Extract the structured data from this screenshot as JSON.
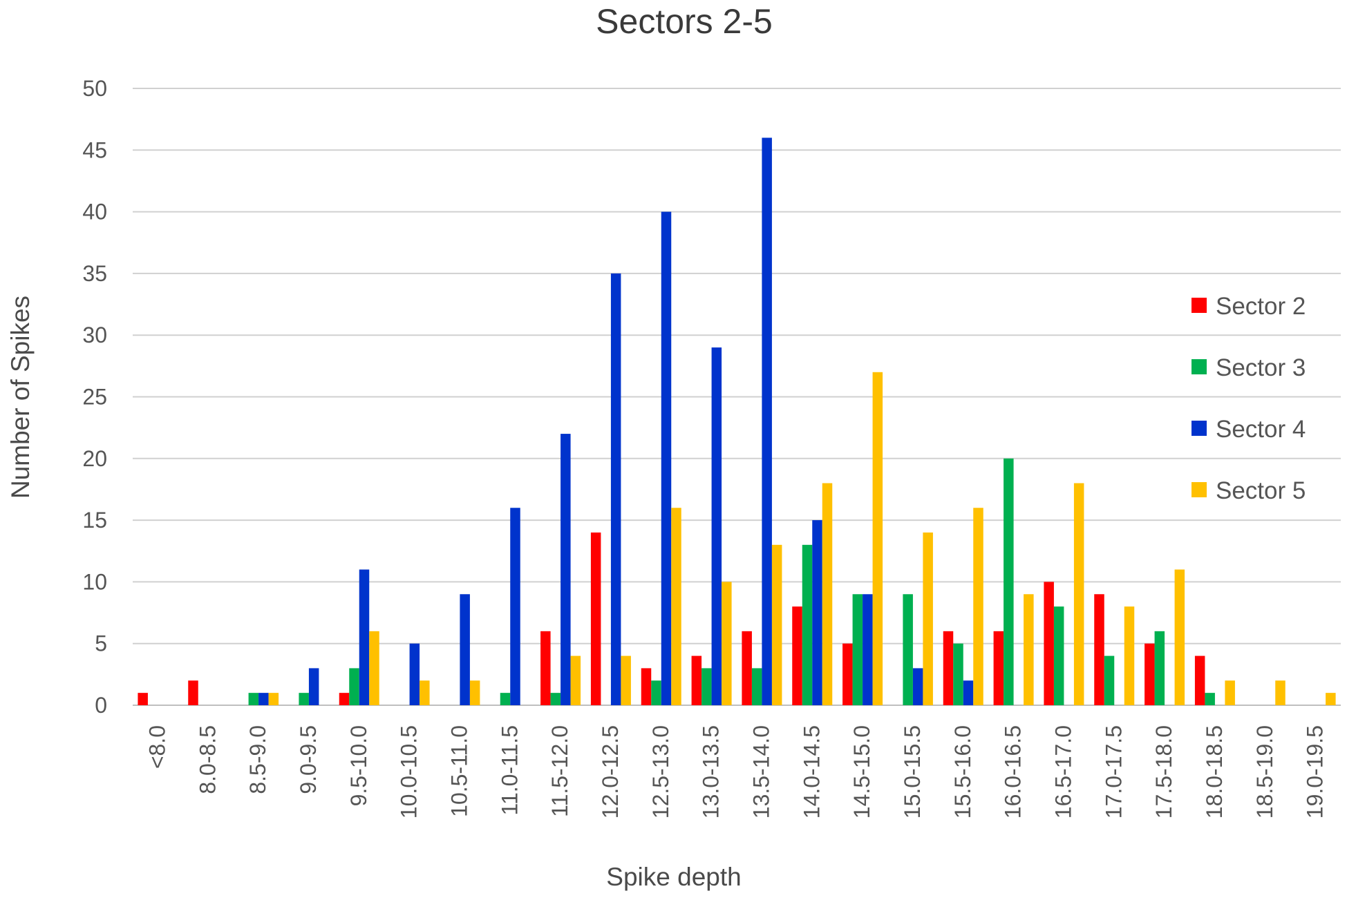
{
  "chart_data": {
    "type": "bar",
    "title": "Sectors 2-5",
    "xlabel": "Spike depth",
    "ylabel": "Number of Spikes",
    "ylim": [
      0,
      50
    ],
    "yticks": [
      0,
      5,
      10,
      15,
      20,
      25,
      30,
      35,
      40,
      45,
      50
    ],
    "grid": true,
    "legend_position": "right",
    "categories": [
      "<8.0",
      "8.0-8.5",
      "8.5-9.0",
      "9.0-9.5",
      "9.5-10.0",
      "10.0-10.5",
      "10.5-11.0",
      "11.0-11.5",
      "11.5-12.0",
      "12.0-12.5",
      "12.5-13.0",
      "13.0-13.5",
      "13.5-14.0",
      "14.0-14.5",
      "14.5-15.0",
      "15.0-15.5",
      "15.5-16.0",
      "16.0-16.5",
      "16.5-17.0",
      "17.0-17.5",
      "17.5-18.0",
      "18.0-18.5",
      "18.5-19.0",
      "19.0-19.5"
    ],
    "series": [
      {
        "name": "Sector 2",
        "color": "#ff0000",
        "values": [
          1,
          2,
          0,
          0,
          1,
          0,
          0,
          0,
          6,
          14,
          3,
          4,
          6,
          8,
          5,
          0,
          6,
          6,
          10,
          9,
          5,
          4,
          0,
          0
        ]
      },
      {
        "name": "Sector 3",
        "color": "#00b050",
        "values": [
          0,
          0,
          1,
          1,
          3,
          0,
          0,
          1,
          1,
          0,
          2,
          3,
          3,
          13,
          9,
          9,
          5,
          20,
          8,
          4,
          6,
          1,
          0,
          0
        ]
      },
      {
        "name": "Sector 4",
        "color": "#0033cc",
        "values": [
          0,
          0,
          1,
          3,
          11,
          5,
          9,
          16,
          22,
          35,
          40,
          29,
          46,
          15,
          9,
          3,
          2,
          0,
          0,
          0,
          0,
          0,
          0,
          0
        ]
      },
      {
        "name": "Sector 5",
        "color": "#ffc000",
        "values": [
          0,
          0,
          1,
          0,
          6,
          2,
          2,
          0,
          4,
          4,
          16,
          10,
          13,
          18,
          27,
          14,
          16,
          9,
          18,
          8,
          11,
          2,
          2,
          1
        ]
      }
    ]
  }
}
